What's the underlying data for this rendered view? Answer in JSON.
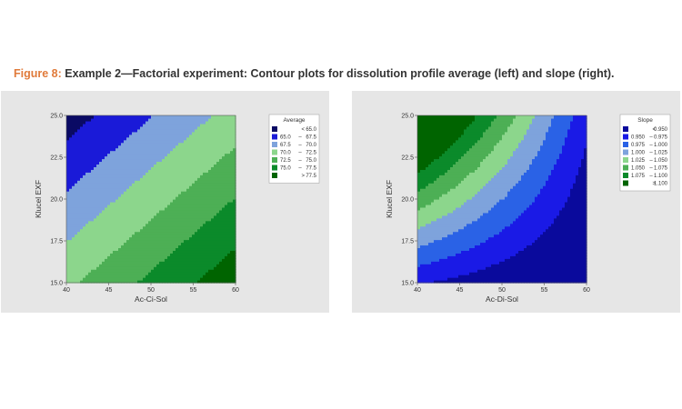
{
  "caption": {
    "figure_label": "Figure 8:",
    "text": "Example 2—Factorial experiment: Contour plots for dissolution profile average (left) and slope (right)."
  },
  "chart_data": [
    {
      "type": "heatmap",
      "subtype": "contour",
      "xlabel": "Ac-Ci-Sol",
      "ylabel": "Klucel EXF",
      "xlim": [
        40,
        60
      ],
      "ylim": [
        15,
        25
      ],
      "xticks": [
        "40",
        "45",
        "50",
        "55",
        "60"
      ],
      "yticks": [
        "15.0",
        "17.5",
        "20.0",
        "22.5",
        "25.0"
      ],
      "legend_title": "Average",
      "legend_position": "top-right",
      "levels": [
        {
          "label": "<",
          "range": "65.0",
          "color": "#0a0a64"
        },
        {
          "label": "65.0",
          "range": "67.5",
          "color": "#1a1ad8"
        },
        {
          "label": "67.5",
          "range": "70.0",
          "color": "#7ea3dc"
        },
        {
          "label": "70.0",
          "range": "72.5",
          "color": "#8cd68c"
        },
        {
          "label": "72.5",
          "range": "75.0",
          "color": "#4daf55"
        },
        {
          "label": "75.0",
          "range": "77.5",
          "color": "#0b8a2a"
        },
        {
          "label": ">",
          "range": "77.5",
          "color": "#006400"
        }
      ],
      "contour_model": {
        "intercept": 71.5,
        "x_coef": 0.36,
        "y_coef": -0.82,
        "x_center": 50,
        "y_center": 20
      },
      "color_by_index": [
        "#0a0a64",
        "#1a1ad8",
        "#7ea3dc",
        "#8cd68c",
        "#4daf55",
        "#0b8a2a",
        "#006400"
      ],
      "breaks": [
        65.0,
        67.5,
        70.0,
        72.5,
        75.0,
        77.5
      ]
    },
    {
      "type": "heatmap",
      "subtype": "contour",
      "xlabel": "Ac-Di-Sol",
      "ylabel": "Klucel EXF",
      "xlim": [
        40,
        60
      ],
      "ylim": [
        15,
        25
      ],
      "xticks": [
        "40",
        "45",
        "50",
        "55",
        "60"
      ],
      "yticks": [
        "15.0",
        "17.5",
        "20.0",
        "22.5",
        "25.0"
      ],
      "legend_title": "Slope",
      "legend_position": "top-right",
      "levels": [
        {
          "label": "<",
          "range": "0.950",
          "color": "#0a0a9c"
        },
        {
          "label": "0.950",
          "range": "0.975",
          "color": "#1a1ae6"
        },
        {
          "label": "0.975",
          "range": "1.000",
          "color": "#2a62e6"
        },
        {
          "label": "1.000",
          "range": "1.025",
          "color": "#7ea3dc"
        },
        {
          "label": "1.025",
          "range": "1.050",
          "color": "#8cd68c"
        },
        {
          "label": "1.050",
          "range": "1.075",
          "color": "#4daf55"
        },
        {
          "label": "1.075",
          "range": "1.100",
          "color": "#0b8a2a"
        },
        {
          "label": ">",
          "range": "1.100",
          "color": "#006400"
        }
      ],
      "contour_model": {
        "intercept": 1.0,
        "x_coef": -0.0065,
        "y_coef": 0.0135,
        "xy_coef": -0.0009,
        "x_center": 50,
        "y_center": 20
      },
      "color_by_index": [
        "#0a0a9c",
        "#1a1ae6",
        "#2a62e6",
        "#7ea3dc",
        "#8cd68c",
        "#4daf55",
        "#0b8a2a",
        "#006400"
      ],
      "breaks": [
        0.95,
        0.975,
        1.0,
        1.025,
        1.05,
        1.075,
        1.1
      ]
    }
  ]
}
